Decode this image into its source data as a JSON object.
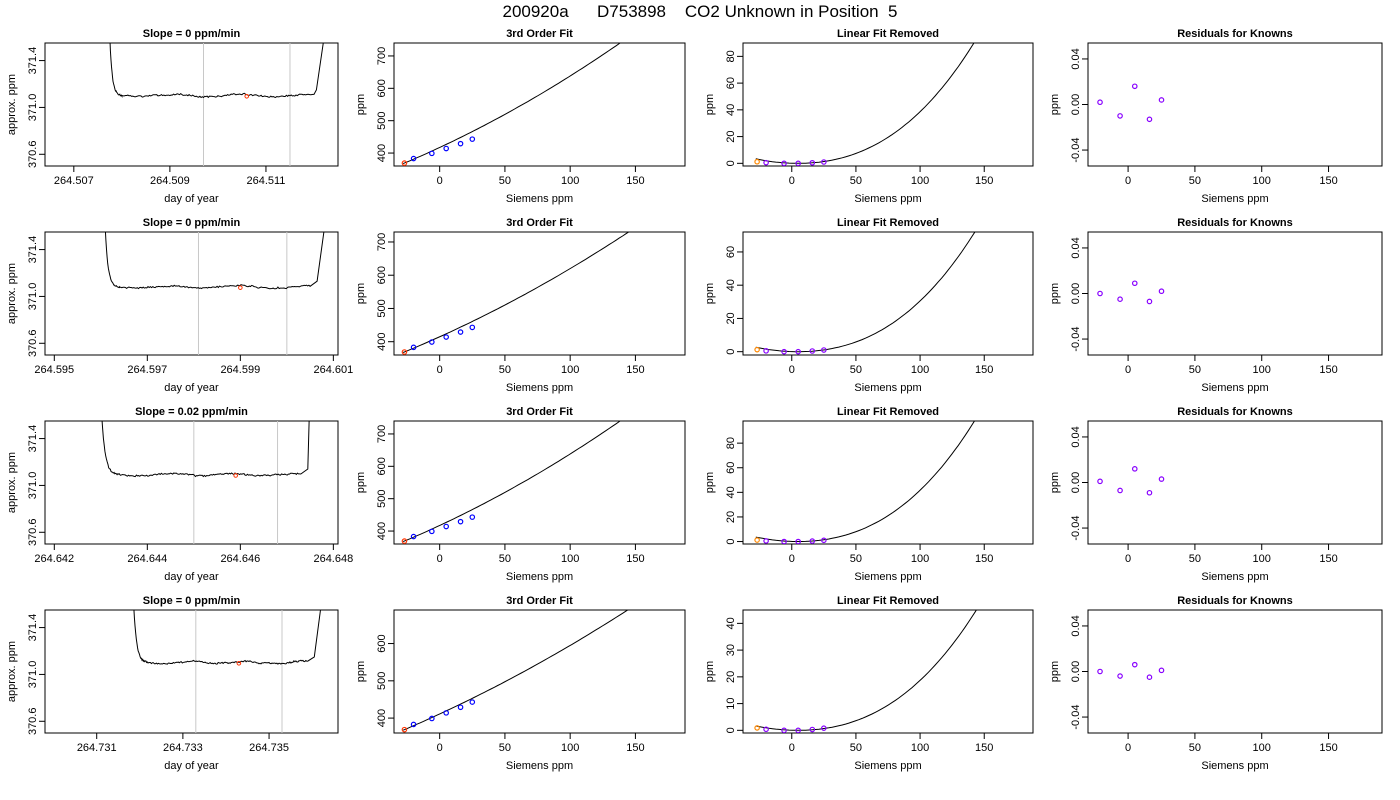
{
  "page": {
    "title": "200920a      D753898    CO2 Unknown in Position  5"
  },
  "chart_data": [
    {
      "row": 0,
      "col": 0,
      "type": "line",
      "title": "Slope =  0  ppm/min",
      "xlabel": "day of year",
      "ylabel": "approx. ppm",
      "xlim": [
        264.5064,
        264.5125
      ],
      "ylim": [
        370.5,
        371.55
      ],
      "xticks": [
        264.507,
        264.509,
        264.511
      ],
      "xtick_labels": [
        "264.507",
        "264.509",
        "264.511"
      ],
      "yticks": [
        370.6,
        371.0,
        371.4
      ],
      "ytick_labels": [
        "370.6",
        "371.0",
        "371.4"
      ],
      "vlines": [
        264.5097,
        264.5115
      ],
      "marker_x": 264.5106,
      "marker_y": 371.095,
      "trace": {
        "start": 264.50773,
        "rise_end": 264.50793,
        "flat_start": 264.508,
        "flat_end": 264.512,
        "fall": 264.51205,
        "end": 264.5123,
        "level": 371.1
      }
    },
    {
      "row": 0,
      "col": 1,
      "type": "line",
      "title": "3rd Order Fit",
      "xlabel": "Siemens ppm",
      "ylabel": "ppm",
      "xlim": [
        -35,
        188
      ],
      "ylim": [
        360,
        740
      ],
      "xticks": [
        0,
        50,
        100,
        150
      ],
      "yticks": [
        400,
        500,
        600,
        700
      ],
      "curve": {
        "x0": -28,
        "x1": 179,
        "a": 4.6,
        "b": 1.7,
        "c": 0.0033,
        "d": 0
      },
      "points": [
        {
          "x": -27,
          "y": 369,
          "color": "#ff3300"
        },
        {
          "x": -20,
          "y": 383,
          "color": "#0000ff"
        },
        {
          "x": -6,
          "y": 399,
          "color": "#0000ff"
        },
        {
          "x": 5,
          "y": 414,
          "color": "#0000ff"
        },
        {
          "x": 16,
          "y": 429,
          "color": "#0000ff"
        },
        {
          "x": 25,
          "y": 443,
          "color": "#0000ff"
        }
      ]
    },
    {
      "row": 0,
      "col": 2,
      "type": "line",
      "title": "Linear Fit Removed",
      "xlabel": "Siemens ppm",
      "ylabel": "ppm",
      "xlim": [
        -38,
        188
      ],
      "ylim": [
        -2,
        90
      ],
      "xticks": [
        0,
        50,
        100,
        150
      ],
      "yticks": [
        0,
        20,
        40,
        60,
        80
      ],
      "curve": {
        "x0": -28,
        "x1": 179,
        "p0": 5.0,
        "pa": 0.0031,
        "pb": 0,
        "nz": 2.5
      },
      "points": [
        {
          "x": -27,
          "y": 1.2,
          "color": "#ff8800"
        },
        {
          "x": -20,
          "y": 0.5,
          "color": "#8800ff"
        },
        {
          "x": -6,
          "y": 0.0,
          "color": "#8800ff"
        },
        {
          "x": 5,
          "y": 0.0,
          "color": "#8800ff"
        },
        {
          "x": 16,
          "y": 0.4,
          "color": "#8800ff"
        },
        {
          "x": 25,
          "y": 1.0,
          "color": "#8800ff"
        }
      ]
    },
    {
      "row": 0,
      "col": 3,
      "type": "scatter",
      "title": "Residuals for Knowns",
      "xlabel": "Siemens ppm",
      "ylabel": "ppm",
      "xlim": [
        -30,
        190
      ],
      "ylim": [
        -0.054,
        0.054
      ],
      "xticks": [
        0,
        50,
        100,
        150
      ],
      "yticks": [
        -0.04,
        0.0,
        0.04
      ],
      "ytick_labels": [
        "-0.04",
        "0.00",
        "0.04"
      ],
      "points": [
        {
          "x": -21,
          "y": 0.002,
          "color": "#8800ff"
        },
        {
          "x": -6,
          "y": -0.01,
          "color": "#8800ff"
        },
        {
          "x": 5,
          "y": 0.016,
          "color": "#8800ff"
        },
        {
          "x": 16,
          "y": -0.013,
          "color": "#8800ff"
        },
        {
          "x": 25,
          "y": 0.004,
          "color": "#8800ff"
        }
      ]
    },
    {
      "row": 1,
      "col": 0,
      "type": "line",
      "title": "Slope =  0  ppm/min",
      "xlabel": "day of year",
      "ylabel": "approx. ppm",
      "xlim": [
        264.5948,
        264.6011
      ],
      "ylim": [
        370.5,
        371.55
      ],
      "xticks": [
        264.595,
        264.597,
        264.599,
        264.601
      ],
      "xtick_labels": [
        "264.595",
        "264.597",
        "264.599",
        "264.601"
      ],
      "yticks": [
        370.6,
        371.0,
        371.4
      ],
      "ytick_labels": [
        "370.6",
        "371.0",
        "371.4"
      ],
      "vlines": [
        264.5981,
        264.6
      ],
      "marker_x": 264.599,
      "marker_y": 371.075,
      "trace": {
        "start": 264.59607,
        "rise_end": 264.5963,
        "flat_start": 264.5964,
        "flat_end": 264.6005,
        "fall": 264.60065,
        "end": 264.6009,
        "level": 371.08
      }
    },
    {
      "row": 1,
      "col": 1,
      "type": "line",
      "title": "3rd Order Fit",
      "xlabel": "Siemens ppm",
      "ylabel": "ppm",
      "xlim": [
        -35,
        188
      ],
      "ylim": [
        360,
        730
      ],
      "xticks": [
        0,
        50,
        100,
        150
      ],
      "yticks": [
        400,
        500,
        600,
        700
      ],
      "curve": {
        "x0": -28,
        "x1": 179,
        "a": 4.6,
        "b": 1.62,
        "c": 0.0028,
        "d": 0
      },
      "points": [
        {
          "x": -27,
          "y": 369,
          "color": "#ff3300"
        },
        {
          "x": -20,
          "y": 383,
          "color": "#0000ff"
        },
        {
          "x": -6,
          "y": 399,
          "color": "#0000ff"
        },
        {
          "x": 5,
          "y": 414,
          "color": "#0000ff"
        },
        {
          "x": 16,
          "y": 429,
          "color": "#0000ff"
        },
        {
          "x": 25,
          "y": 443,
          "color": "#0000ff"
        }
      ]
    },
    {
      "row": 1,
      "col": 2,
      "type": "line",
      "title": "Linear Fit Removed",
      "xlabel": "Siemens ppm",
      "ylabel": "ppm",
      "xlim": [
        -38,
        188
      ],
      "ylim": [
        -2,
        72
      ],
      "xticks": [
        0,
        50,
        100,
        150
      ],
      "yticks": [
        0,
        20,
        40,
        60
      ],
      "curve": {
        "x0": -28,
        "x1": 179,
        "p0": 5.0,
        "pa": 0.00245,
        "pb": 0,
        "nz": 2.5
      },
      "points": [
        {
          "x": -27,
          "y": 1.2,
          "color": "#ff8800"
        },
        {
          "x": -20,
          "y": 0.5,
          "color": "#8800ff"
        },
        {
          "x": -6,
          "y": 0.0,
          "color": "#8800ff"
        },
        {
          "x": 5,
          "y": 0.0,
          "color": "#8800ff"
        },
        {
          "x": 16,
          "y": 0.4,
          "color": "#8800ff"
        },
        {
          "x": 25,
          "y": 1.0,
          "color": "#8800ff"
        }
      ]
    },
    {
      "row": 1,
      "col": 3,
      "type": "scatter",
      "title": "Residuals for Knowns",
      "xlabel": "Siemens ppm",
      "ylabel": "ppm",
      "xlim": [
        -30,
        190
      ],
      "ylim": [
        -0.054,
        0.054
      ],
      "xticks": [
        0,
        50,
        100,
        150
      ],
      "yticks": [
        -0.04,
        0.0,
        0.04
      ],
      "ytick_labels": [
        "-0.04",
        "0.00",
        "0.04"
      ],
      "points": [
        {
          "x": -21,
          "y": 0.0,
          "color": "#8800ff"
        },
        {
          "x": -6,
          "y": -0.005,
          "color": "#8800ff"
        },
        {
          "x": 5,
          "y": 0.009,
          "color": "#8800ff"
        },
        {
          "x": 16,
          "y": -0.007,
          "color": "#8800ff"
        },
        {
          "x": 25,
          "y": 0.002,
          "color": "#8800ff"
        }
      ]
    },
    {
      "row": 2,
      "col": 0,
      "type": "line",
      "title": "Slope =  0.02  ppm/min",
      "xlabel": "day of year",
      "ylabel": "approx. ppm",
      "xlim": [
        264.6418,
        264.6481
      ],
      "ylim": [
        370.5,
        371.55
      ],
      "xticks": [
        264.642,
        264.644,
        264.646,
        264.648
      ],
      "xtick_labels": [
        "264.642",
        "264.644",
        "264.646",
        "264.648"
      ],
      "yticks": [
        370.6,
        371.0,
        371.4
      ],
      "ytick_labels": [
        "370.6",
        "371.0",
        "371.4"
      ],
      "vlines": [
        264.645,
        264.6468
      ],
      "marker_x": 264.6459,
      "marker_y": 371.085,
      "trace": {
        "start": 264.64299,
        "rise_end": 264.6432,
        "flat_start": 264.6434,
        "flat_end": 264.6473,
        "fall": 264.64745,
        "end": 264.6475,
        "level": 371.09
      }
    },
    {
      "row": 2,
      "col": 1,
      "type": "line",
      "title": "3rd Order Fit",
      "xlabel": "Siemens ppm",
      "ylabel": "ppm",
      "xlim": [
        -35,
        188
      ],
      "ylim": [
        360,
        740
      ],
      "xticks": [
        0,
        50,
        100,
        150
      ],
      "yticks": [
        400,
        500,
        600,
        700
      ],
      "curve": {
        "x0": -28,
        "x1": 179,
        "a": 4.6,
        "b": 1.7,
        "c": 0.0033,
        "d": 0
      },
      "points": [
        {
          "x": -27,
          "y": 369,
          "color": "#ff3300"
        },
        {
          "x": -20,
          "y": 383,
          "color": "#0000ff"
        },
        {
          "x": -6,
          "y": 399,
          "color": "#0000ff"
        },
        {
          "x": 5,
          "y": 414,
          "color": "#0000ff"
        },
        {
          "x": 16,
          "y": 429,
          "color": "#0000ff"
        },
        {
          "x": 25,
          "y": 443,
          "color": "#0000ff"
        }
      ]
    },
    {
      "row": 2,
      "col": 2,
      "type": "line",
      "title": "Linear Fit Removed",
      "xlabel": "Siemens ppm",
      "ylabel": "ppm",
      "xlim": [
        -38,
        188
      ],
      "ylim": [
        -2,
        98
      ],
      "xticks": [
        0,
        50,
        100,
        150
      ],
      "yticks": [
        0,
        20,
        40,
        60,
        80
      ],
      "curve": {
        "x0": -28,
        "x1": 179,
        "p0": 5.0,
        "pa": 0.00335,
        "pb": 0,
        "nz": 2.5
      },
      "points": [
        {
          "x": -27,
          "y": 1.2,
          "color": "#ff8800"
        },
        {
          "x": -20,
          "y": 0.5,
          "color": "#8800ff"
        },
        {
          "x": -6,
          "y": 0.0,
          "color": "#8800ff"
        },
        {
          "x": 5,
          "y": 0.0,
          "color": "#8800ff"
        },
        {
          "x": 16,
          "y": 0.4,
          "color": "#8800ff"
        },
        {
          "x": 25,
          "y": 1.0,
          "color": "#8800ff"
        }
      ]
    },
    {
      "row": 2,
      "col": 3,
      "type": "scatter",
      "title": "Residuals for Knowns",
      "xlabel": "Siemens ppm",
      "ylabel": "ppm",
      "xlim": [
        -30,
        190
      ],
      "ylim": [
        -0.054,
        0.054
      ],
      "xticks": [
        0,
        50,
        100,
        150
      ],
      "yticks": [
        -0.04,
        0.0,
        0.04
      ],
      "ytick_labels": [
        "-0.04",
        "0.00",
        "0.04"
      ],
      "points": [
        {
          "x": -21,
          "y": 0.001,
          "color": "#8800ff"
        },
        {
          "x": -6,
          "y": -0.007,
          "color": "#8800ff"
        },
        {
          "x": 5,
          "y": 0.012,
          "color": "#8800ff"
        },
        {
          "x": 16,
          "y": -0.009,
          "color": "#8800ff"
        },
        {
          "x": 25,
          "y": 0.003,
          "color": "#8800ff"
        }
      ]
    },
    {
      "row": 3,
      "col": 0,
      "type": "line",
      "title": "Slope =  0  ppm/min",
      "xlabel": "day of year",
      "ylabel": "approx. ppm",
      "xlim": [
        264.7298,
        264.7366
      ],
      "ylim": [
        370.5,
        371.55
      ],
      "xticks": [
        264.731,
        264.733,
        264.735
      ],
      "xtick_labels": [
        "264.731",
        "264.733",
        "264.735"
      ],
      "yticks": [
        370.6,
        371.0,
        371.4
      ],
      "ytick_labels": [
        "370.6",
        "371.0",
        "371.4"
      ],
      "vlines": [
        264.7333,
        264.7353
      ],
      "marker_x": 264.7343,
      "marker_y": 371.095,
      "trace": {
        "start": 264.73183,
        "rise_end": 264.7321,
        "flat_start": 264.7322,
        "flat_end": 264.7359,
        "fall": 264.73605,
        "end": 264.7363,
        "level": 371.1
      }
    },
    {
      "row": 3,
      "col": 1,
      "type": "line",
      "title": "3rd Order Fit",
      "xlabel": "Siemens ppm",
      "ylabel": "ppm",
      "xlim": [
        -35,
        188
      ],
      "ylim": [
        360,
        690
      ],
      "xticks": [
        0,
        50,
        100,
        150
      ],
      "yticks": [
        400,
        500,
        600
      ],
      "curve": {
        "x0": -28,
        "x1": 179,
        "a": 4.6,
        "b": 1.5,
        "c": 0.0022,
        "d": 0
      },
      "points": [
        {
          "x": -27,
          "y": 369,
          "color": "#ff3300"
        },
        {
          "x": -20,
          "y": 383,
          "color": "#0000ff"
        },
        {
          "x": -6,
          "y": 399,
          "color": "#0000ff"
        },
        {
          "x": 5,
          "y": 414,
          "color": "#0000ff"
        },
        {
          "x": 16,
          "y": 429,
          "color": "#0000ff"
        },
        {
          "x": 25,
          "y": 443,
          "color": "#0000ff"
        }
      ]
    },
    {
      "row": 3,
      "col": 2,
      "type": "line",
      "title": "Linear Fit Removed",
      "xlabel": "Siemens ppm",
      "ylabel": "ppm",
      "xlim": [
        -38,
        188
      ],
      "ylim": [
        -1,
        45
      ],
      "xticks": [
        0,
        50,
        100,
        150
      ],
      "yticks": [
        0,
        10,
        20,
        30,
        40
      ],
      "curve": {
        "x0": -28,
        "x1": 179,
        "p0": 5.0,
        "pa": 0.0015,
        "pb": 0,
        "nz": 2.5
      },
      "points": [
        {
          "x": -27,
          "y": 0.9,
          "color": "#ff8800"
        },
        {
          "x": -20,
          "y": 0.4,
          "color": "#8800ff"
        },
        {
          "x": -6,
          "y": 0.0,
          "color": "#8800ff"
        },
        {
          "x": 5,
          "y": 0.0,
          "color": "#8800ff"
        },
        {
          "x": 16,
          "y": 0.3,
          "color": "#8800ff"
        },
        {
          "x": 25,
          "y": 0.8,
          "color": "#8800ff"
        }
      ]
    },
    {
      "row": 3,
      "col": 3,
      "type": "scatter",
      "title": "Residuals for Knowns",
      "xlabel": "Siemens ppm",
      "ylabel": "ppm",
      "xlim": [
        -30,
        190
      ],
      "ylim": [
        -0.054,
        0.054
      ],
      "xticks": [
        0,
        50,
        100,
        150
      ],
      "yticks": [
        -0.04,
        0.0,
        0.04
      ],
      "ytick_labels": [
        "-0.04",
        "0.00",
        "0.04"
      ],
      "points": [
        {
          "x": -21,
          "y": 0.0,
          "color": "#8800ff"
        },
        {
          "x": -6,
          "y": -0.004,
          "color": "#8800ff"
        },
        {
          "x": 5,
          "y": 0.006,
          "color": "#8800ff"
        },
        {
          "x": 16,
          "y": -0.005,
          "color": "#8800ff"
        },
        {
          "x": 25,
          "y": 0.001,
          "color": "#8800ff"
        }
      ]
    }
  ]
}
